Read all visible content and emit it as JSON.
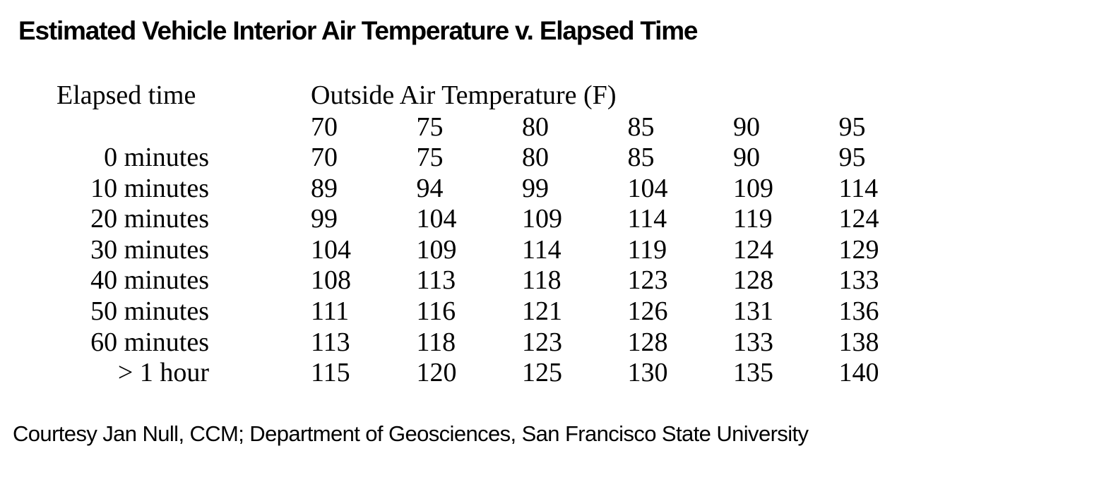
{
  "header": {
    "title": "Estimated Vehicle Interior Air Temperature v. Elapsed Time",
    "row_header": "Elapsed time",
    "column_group": "Outside Air Temperature (F)"
  },
  "table": {
    "columns": [
      70,
      75,
      80,
      85,
      90,
      95
    ],
    "rows": [
      {
        "label": "0 minutes",
        "values": [
          70,
          75,
          80,
          85,
          90,
          95
        ]
      },
      {
        "label": "10 minutes",
        "values": [
          89,
          94,
          99,
          104,
          109,
          114
        ]
      },
      {
        "label": "20 minutes",
        "values": [
          99,
          104,
          109,
          114,
          119,
          124
        ]
      },
      {
        "label": "30 minutes",
        "values": [
          104,
          109,
          114,
          119,
          124,
          129
        ]
      },
      {
        "label": "40 minutes",
        "values": [
          108,
          113,
          118,
          123,
          128,
          133
        ]
      },
      {
        "label": "50 minutes",
        "values": [
          111,
          116,
          121,
          126,
          131,
          136
        ]
      },
      {
        "label": "60 minutes",
        "values": [
          113,
          118,
          123,
          128,
          133,
          138
        ]
      },
      {
        "label": "> 1 hour",
        "values": [
          115,
          120,
          125,
          130,
          135,
          140
        ]
      }
    ]
  },
  "footer": {
    "source": "Courtesy Jan Null, CCM; Department of Geosciences, San Francisco State University"
  }
}
